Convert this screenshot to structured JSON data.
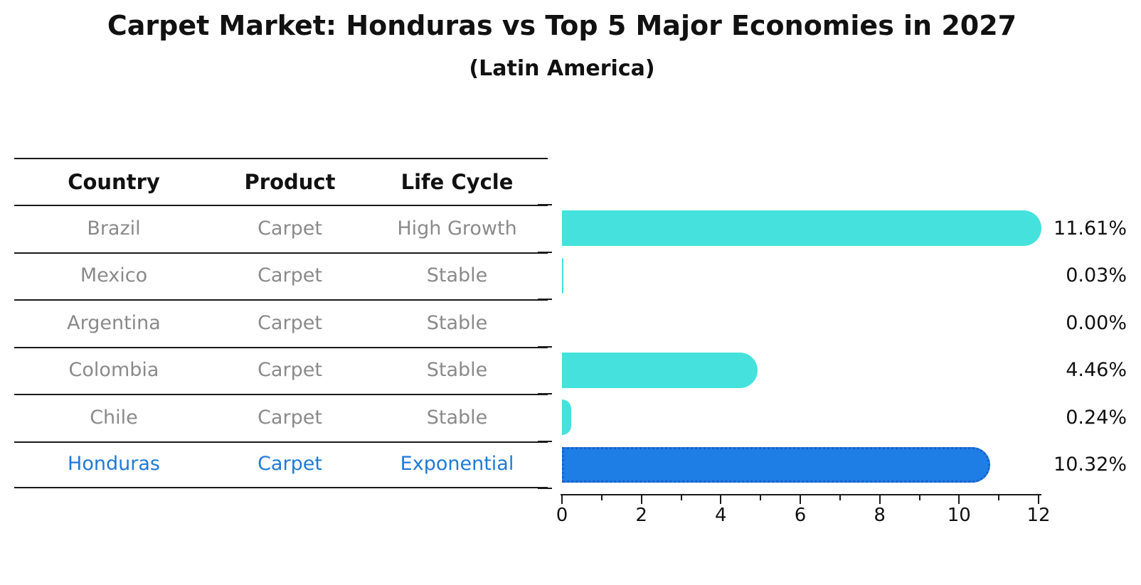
{
  "title": "Carpet Market: Honduras vs Top 5 Major Economies in 2027",
  "subtitle": "(Latin America)",
  "table": {
    "headers": [
      "Country",
      "Product",
      "Life Cycle"
    ],
    "rows": [
      {
        "country": "Brazil",
        "product": "Carpet",
        "life_cycle": "High Growth",
        "highlight": false
      },
      {
        "country": "Mexico",
        "product": "Carpet",
        "life_cycle": "Stable",
        "highlight": false
      },
      {
        "country": "Argentina",
        "product": "Carpet",
        "life_cycle": "Stable",
        "highlight": false
      },
      {
        "country": "Colombia",
        "product": "Carpet",
        "life_cycle": "Stable",
        "highlight": false
      },
      {
        "country": "Chile",
        "product": "Carpet",
        "life_cycle": "Stable",
        "highlight": false
      },
      {
        "country": "Honduras",
        "product": "Carpet",
        "life_cycle": "Exponential",
        "highlight": true
      }
    ]
  },
  "chart_data": {
    "type": "bar",
    "orientation": "horizontal",
    "title": "Carpet Market: Honduras vs Top 5 Major Economies in 2027",
    "subtitle": "(Latin America)",
    "categories": [
      "Brazil",
      "Mexico",
      "Argentina",
      "Colombia",
      "Chile",
      "Honduras"
    ],
    "values": [
      11.61,
      0.03,
      0.0,
      4.46,
      0.24,
      10.32
    ],
    "value_labels": [
      "11.61%",
      "0.03%",
      "0.00%",
      "4.46%",
      "0.24%",
      "10.32%"
    ],
    "xlim": [
      0,
      12
    ],
    "xticks": [
      0,
      2,
      4,
      6,
      8,
      10,
      12
    ],
    "grid": false,
    "legend": "none",
    "highlight_index": 5
  },
  "colors": {
    "bar": "#45E2DD",
    "highlight_bar": "#1E7EE5",
    "highlight_bar_border": "#1A5FC8",
    "highlight_text": "#1F7AD6",
    "table_text": "#8A8A8A",
    "header_text": "#111111",
    "rule": "#1A1A1A"
  }
}
